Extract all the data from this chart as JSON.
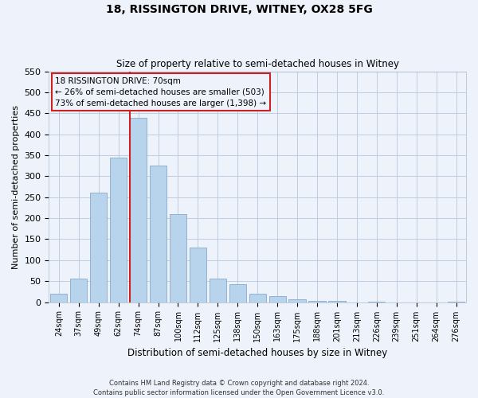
{
  "title": "18, RISSINGTON DRIVE, WITNEY, OX28 5FG",
  "subtitle": "Size of property relative to semi-detached houses in Witney",
  "xlabel": "Distribution of semi-detached houses by size in Witney",
  "ylabel": "Number of semi-detached properties",
  "bar_labels": [
    "24sqm",
    "37sqm",
    "49sqm",
    "62sqm",
    "74sqm",
    "87sqm",
    "100sqm",
    "112sqm",
    "125sqm",
    "138sqm",
    "150sqm",
    "163sqm",
    "175sqm",
    "188sqm",
    "201sqm",
    "213sqm",
    "226sqm",
    "239sqm",
    "251sqm",
    "264sqm",
    "276sqm"
  ],
  "bar_values": [
    20,
    57,
    260,
    345,
    440,
    325,
    210,
    130,
    57,
    42,
    20,
    14,
    7,
    3,
    3,
    0,
    2,
    0,
    0,
    0,
    2
  ],
  "bar_color": "#b8d4ec",
  "bar_edge_color": "#88aacc",
  "annotation_text_line1": "18 RISSINGTON DRIVE: 70sqm",
  "annotation_text_line2": "← 26% of semi-detached houses are smaller (503)",
  "annotation_text_line3": "73% of semi-detached houses are larger (1,398) →",
  "ylim": [
    0,
    550
  ],
  "yticks": [
    0,
    50,
    100,
    150,
    200,
    250,
    300,
    350,
    400,
    450,
    500,
    550
  ],
  "footer_line1": "Contains HM Land Registry data © Crown copyright and database right 2024.",
  "footer_line2": "Contains public sector information licensed under the Open Government Licence v3.0.",
  "bg_color": "#eef2fa",
  "grid_color": "#c0cce0",
  "box_color": "#cc2222",
  "red_line_x": 3.57
}
